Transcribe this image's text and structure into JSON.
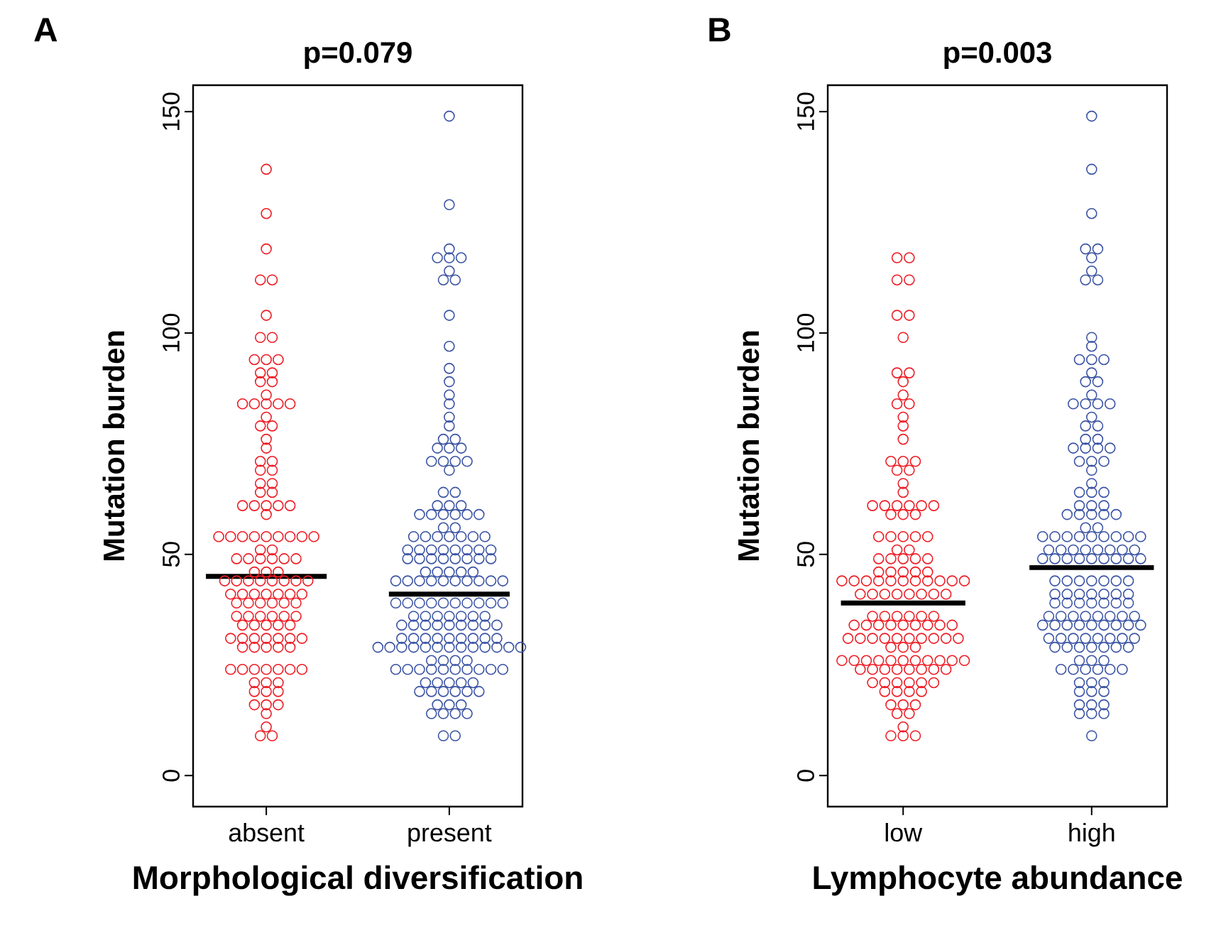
{
  "chart_data": [
    {
      "type": "scatter",
      "title": "p=0.079",
      "xlabel": "Morphological diversification",
      "ylabel": "Mutation burden",
      "annotations": [
        "A"
      ],
      "categories": [
        "absent",
        "present"
      ],
      "ylim": [
        -7,
        156
      ],
      "ref_lines": [
        {
          "axis": "y",
          "value": 45,
          "color": "#000000"
        },
        {
          "axis": "y",
          "value": 41,
          "color": "#000000"
        }
      ],
      "yticks": [
        0,
        50,
        100,
        150
      ],
      "marker": "circle",
      "series": [
        {
          "color": "#ee1c24",
          "x": [
            "absent",
            "absent",
            "absent",
            "absent",
            "absent",
            "absent",
            "absent",
            "absent",
            "absent",
            "absent",
            "absent",
            "absent",
            "absent",
            "absent",
            "absent",
            "absent",
            "absent",
            "absent",
            "absent",
            "absent",
            "absent",
            "absent",
            "absent",
            "absent",
            "absent",
            "absent",
            "absent",
            "absent",
            "absent",
            "absent",
            "absent",
            "absent",
            "absent",
            "absent",
            "absent",
            "absent",
            "absent",
            "absent",
            "absent",
            "absent",
            "absent",
            "absent",
            "absent",
            "absent",
            "absent",
            "absent",
            "absent",
            "absent",
            "absent",
            "absent",
            "absent",
            "absent",
            "absent",
            "absent",
            "absent",
            "absent",
            "absent",
            "absent",
            "absent",
            "absent",
            "absent",
            "absent",
            "absent",
            "absent",
            "absent",
            "absent",
            "absent",
            "absent",
            "absent",
            "absent",
            "absent",
            "absent",
            "absent",
            "absent",
            "absent",
            "absent",
            "absent",
            "absent",
            "absent",
            "absent",
            "absent",
            "absent",
            "absent",
            "absent",
            "absent",
            "absent",
            "absent",
            "absent",
            "absent",
            "absent",
            "absent",
            "absent",
            "absent",
            "absent",
            "absent",
            "absent",
            "absent",
            "absent",
            "absent",
            "absent",
            "absent",
            "absent",
            "absent",
            "absent",
            "absent",
            "absent",
            "absent",
            "absent",
            "absent",
            "absent",
            "absent",
            "absent",
            "absent",
            "absent",
            "absent",
            "absent",
            "absent",
            "absent",
            "absent",
            "absent",
            "absent",
            "absent",
            "absent",
            "absent"
          ],
          "values": [
            137,
            127,
            119,
            112,
            112,
            104,
            99,
            99,
            94,
            94,
            94,
            91,
            91,
            89,
            89,
            86,
            84,
            84,
            84,
            84,
            84,
            81,
            79,
            79,
            76,
            74,
            71,
            71,
            69,
            69,
            66,
            66,
            64,
            64,
            61,
            61,
            61,
            61,
            61,
            59,
            54,
            54,
            54,
            54,
            54,
            54,
            54,
            54,
            54,
            51,
            51,
            49,
            49,
            49,
            49,
            49,
            49,
            46,
            46,
            46,
            44,
            44,
            44,
            44,
            44,
            44,
            44,
            44,
            41,
            41,
            41,
            41,
            41,
            41,
            41,
            39,
            39,
            39,
            39,
            39,
            39,
            36,
            36,
            36,
            36,
            36,
            36,
            34,
            34,
            34,
            34,
            34,
            31,
            31,
            31,
            31,
            31,
            31,
            31,
            29,
            29,
            29,
            29,
            29,
            24,
            24,
            24,
            24,
            24,
            24,
            24,
            21,
            21,
            21,
            19,
            19,
            19,
            16,
            16,
            16,
            14,
            11,
            9,
            9
          ]
        },
        {
          "color": "#3a53a4",
          "x": [
            "present",
            "present",
            "present",
            "present",
            "present",
            "present",
            "present",
            "present",
            "present",
            "present",
            "present",
            "present",
            "present",
            "present",
            "present",
            "present",
            "present",
            "present",
            "present",
            "present",
            "present",
            "present",
            "present",
            "present",
            "present",
            "present",
            "present",
            "present",
            "present",
            "present",
            "present",
            "present",
            "present",
            "present",
            "present",
            "present",
            "present",
            "present",
            "present",
            "present",
            "present",
            "present",
            "present",
            "present",
            "present",
            "present",
            "present",
            "present",
            "present",
            "present",
            "present",
            "present",
            "present",
            "present",
            "present",
            "present",
            "present",
            "present",
            "present",
            "present",
            "present",
            "present",
            "present",
            "present",
            "present",
            "present",
            "present",
            "present",
            "present",
            "present",
            "present",
            "present",
            "present",
            "present",
            "present",
            "present",
            "present",
            "present",
            "present",
            "present",
            "present",
            "present",
            "present",
            "present",
            "present",
            "present",
            "present",
            "present",
            "present",
            "present",
            "present",
            "present",
            "present",
            "present",
            "present",
            "present",
            "present",
            "present",
            "present",
            "present",
            "present",
            "present",
            "present",
            "present",
            "present",
            "present",
            "present",
            "present",
            "present",
            "present",
            "present",
            "present",
            "present",
            "present",
            "present",
            "present",
            "present",
            "present",
            "present",
            "present",
            "present",
            "present",
            "present",
            "present",
            "present",
            "present",
            "present",
            "present",
            "present",
            "present",
            "present",
            "present",
            "present",
            "present",
            "present",
            "present",
            "present",
            "present",
            "present",
            "present",
            "present",
            "present",
            "present",
            "present",
            "present",
            "present",
            "present",
            "present",
            "present",
            "present",
            "present",
            "present",
            "present",
            "present",
            "present",
            "present",
            "present",
            "present",
            "present",
            "present"
          ],
          "values": [
            149,
            129,
            119,
            117,
            117,
            117,
            114,
            112,
            112,
            104,
            97,
            92,
            89,
            86,
            84,
            81,
            79,
            76,
            76,
            74,
            74,
            74,
            71,
            71,
            71,
            71,
            69,
            64,
            64,
            61,
            61,
            61,
            59,
            59,
            59,
            59,
            59,
            59,
            56,
            56,
            54,
            54,
            54,
            54,
            54,
            54,
            54,
            51,
            51,
            51,
            51,
            51,
            51,
            51,
            51,
            49,
            49,
            49,
            49,
            49,
            49,
            49,
            49,
            46,
            46,
            46,
            46,
            46,
            44,
            44,
            44,
            44,
            44,
            44,
            44,
            44,
            44,
            44,
            39,
            39,
            39,
            39,
            39,
            39,
            39,
            39,
            39,
            39,
            36,
            36,
            36,
            36,
            36,
            36,
            36,
            34,
            34,
            34,
            34,
            34,
            34,
            34,
            34,
            34,
            31,
            31,
            31,
            31,
            31,
            31,
            31,
            31,
            31,
            29,
            29,
            29,
            29,
            29,
            29,
            29,
            29,
            29,
            29,
            29,
            29,
            29,
            26,
            26,
            26,
            26,
            24,
            24,
            24,
            24,
            24,
            24,
            24,
            24,
            24,
            24,
            21,
            21,
            21,
            21,
            21,
            19,
            19,
            19,
            19,
            19,
            19,
            16,
            16,
            16,
            14,
            14,
            14,
            14,
            9,
            9
          ]
        }
      ]
    },
    {
      "type": "scatter",
      "title": "p=0.003",
      "xlabel": "Lymphocyte abundance",
      "ylabel": "Mutation burden",
      "annotations": [
        "B"
      ],
      "categories": [
        "low",
        "high"
      ],
      "ylim": [
        -7,
        156
      ],
      "ref_lines": [
        {
          "axis": "y",
          "value": 39,
          "color": "#000000"
        },
        {
          "axis": "y",
          "value": 47,
          "color": "#000000"
        }
      ],
      "yticks": [
        0,
        50,
        100,
        150
      ],
      "marker": "circle",
      "series": [
        {
          "color": "#ee1c24",
          "x": [
            "low",
            "low",
            "low",
            "low",
            "low",
            "low",
            "low",
            "low",
            "low",
            "low",
            "low",
            "low",
            "low",
            "low",
            "low",
            "low",
            "low",
            "low",
            "low",
            "low",
            "low",
            "low",
            "low",
            "low",
            "low",
            "low",
            "low",
            "low",
            "low",
            "low",
            "low",
            "low",
            "low",
            "low",
            "low",
            "low",
            "low",
            "low",
            "low",
            "low",
            "low",
            "low",
            "low",
            "low",
            "low",
            "low",
            "low",
            "low",
            "low",
            "low",
            "low",
            "low",
            "low",
            "low",
            "low",
            "low",
            "low",
            "low",
            "low",
            "low",
            "low",
            "low",
            "low",
            "low",
            "low",
            "low",
            "low",
            "low",
            "low",
            "low",
            "low",
            "low",
            "low",
            "low",
            "low",
            "low",
            "low",
            "low",
            "low",
            "low",
            "low",
            "low",
            "low",
            "low",
            "low",
            "low",
            "low",
            "low",
            "low",
            "low",
            "low",
            "low",
            "low",
            "low",
            "low",
            "low",
            "low",
            "low",
            "low",
            "low",
            "low",
            "low",
            "low",
            "low",
            "low",
            "low",
            "low",
            "low",
            "low",
            "low",
            "low",
            "low",
            "low",
            "low",
            "low",
            "low",
            "low",
            "low",
            "low",
            "low",
            "low",
            "low",
            "low",
            "low",
            "low",
            "low",
            "low",
            "low",
            "low",
            "low",
            "low",
            "low",
            "low",
            "low"
          ],
          "values": [
            117,
            117,
            112,
            112,
            104,
            104,
            99,
            91,
            91,
            89,
            86,
            84,
            84,
            81,
            79,
            76,
            71,
            71,
            71,
            69,
            69,
            66,
            64,
            61,
            61,
            61,
            61,
            61,
            61,
            59,
            59,
            59,
            54,
            54,
            54,
            54,
            54,
            51,
            51,
            49,
            49,
            49,
            49,
            49,
            46,
            46,
            46,
            46,
            46,
            44,
            44,
            44,
            44,
            44,
            44,
            44,
            44,
            44,
            44,
            44,
            41,
            41,
            41,
            41,
            41,
            41,
            41,
            41,
            36,
            36,
            36,
            36,
            36,
            36,
            34,
            34,
            34,
            34,
            34,
            34,
            34,
            34,
            34,
            31,
            31,
            31,
            31,
            31,
            31,
            31,
            31,
            31,
            31,
            29,
            29,
            29,
            26,
            26,
            26,
            26,
            26,
            26,
            26,
            26,
            26,
            26,
            26,
            24,
            24,
            24,
            24,
            24,
            24,
            24,
            24,
            21,
            21,
            21,
            21,
            21,
            21,
            19,
            19,
            19,
            19,
            16,
            16,
            16,
            14,
            14,
            11,
            9,
            9,
            9
          ]
        },
        {
          "color": "#3a53a4",
          "x": [
            "high",
            "high",
            "high",
            "high",
            "high",
            "high",
            "high",
            "high",
            "high",
            "high",
            "high",
            "high",
            "high",
            "high",
            "high",
            "high",
            "high",
            "high",
            "high",
            "high",
            "high",
            "high",
            "high",
            "high",
            "high",
            "high",
            "high",
            "high",
            "high",
            "high",
            "high",
            "high",
            "high",
            "high",
            "high",
            "high",
            "high",
            "high",
            "high",
            "high",
            "high",
            "high",
            "high",
            "high",
            "high",
            "high",
            "high",
            "high",
            "high",
            "high",
            "high",
            "high",
            "high",
            "high",
            "high",
            "high",
            "high",
            "high",
            "high",
            "high",
            "high",
            "high",
            "high",
            "high",
            "high",
            "high",
            "high",
            "high",
            "high",
            "high",
            "high",
            "high",
            "high",
            "high",
            "high",
            "high",
            "high",
            "high",
            "high",
            "high",
            "high",
            "high",
            "high",
            "high",
            "high",
            "high",
            "high",
            "high",
            "high",
            "high",
            "high",
            "high",
            "high",
            "high",
            "high",
            "high",
            "high",
            "high",
            "high",
            "high",
            "high",
            "high",
            "high",
            "high",
            "high",
            "high",
            "high",
            "high",
            "high",
            "high",
            "high",
            "high",
            "high",
            "high",
            "high",
            "high",
            "high",
            "high",
            "high",
            "high",
            "high",
            "high",
            "high",
            "high",
            "high",
            "high",
            "high",
            "high",
            "high",
            "high",
            "high",
            "high",
            "high",
            "high",
            "high",
            "high",
            "high",
            "high",
            "high",
            "high",
            "high",
            "high",
            "high",
            "high",
            "high",
            "high",
            "high",
            "high",
            "high",
            "high"
          ],
          "values": [
            149,
            137,
            127,
            119,
            119,
            117,
            114,
            112,
            112,
            99,
            97,
            94,
            94,
            94,
            91,
            89,
            89,
            86,
            84,
            84,
            84,
            84,
            81,
            79,
            79,
            76,
            76,
            74,
            74,
            74,
            74,
            71,
            71,
            71,
            69,
            66,
            64,
            64,
            64,
            61,
            61,
            61,
            59,
            59,
            59,
            59,
            59,
            56,
            56,
            54,
            54,
            54,
            54,
            54,
            54,
            54,
            54,
            54,
            51,
            51,
            51,
            51,
            51,
            51,
            51,
            51,
            49,
            49,
            49,
            49,
            49,
            49,
            49,
            49,
            49,
            44,
            44,
            44,
            44,
            44,
            44,
            44,
            41,
            41,
            41,
            41,
            41,
            41,
            41,
            39,
            39,
            39,
            39,
            39,
            39,
            39,
            36,
            36,
            36,
            36,
            36,
            36,
            36,
            36,
            34,
            34,
            34,
            34,
            34,
            34,
            34,
            34,
            34,
            31,
            31,
            31,
            31,
            31,
            31,
            31,
            31,
            29,
            29,
            29,
            29,
            29,
            29,
            29,
            26,
            26,
            26,
            24,
            24,
            24,
            24,
            24,
            24,
            21,
            21,
            21,
            19,
            19,
            19,
            16,
            16,
            16,
            14,
            14,
            14,
            9
          ]
        }
      ]
    }
  ]
}
